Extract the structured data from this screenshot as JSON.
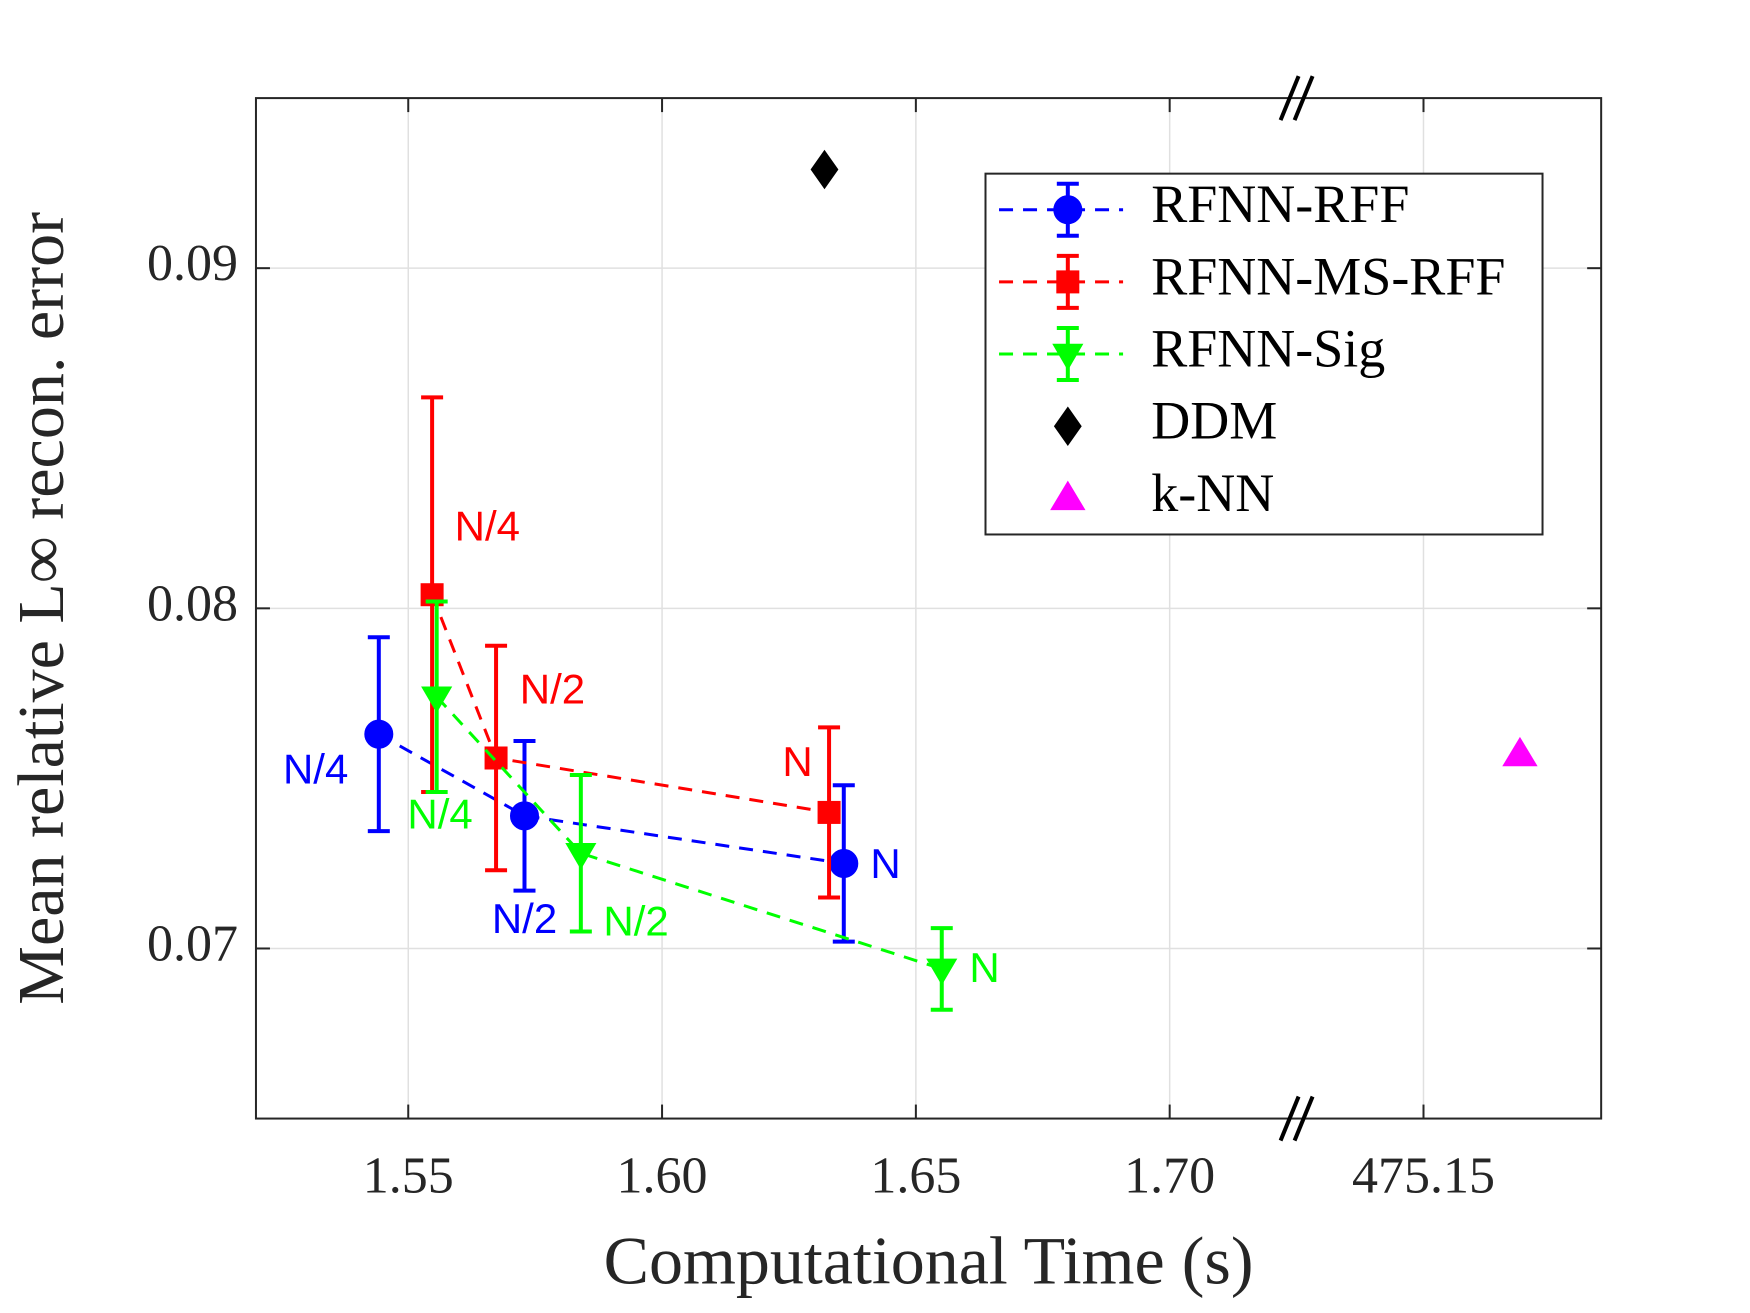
{
  "chart_data": {
    "type": "errorbar_scatter",
    "xlabel": "Computational Time (s)",
    "ylabel": "Mean relative L∞ recon. error",
    "xlim": [
      1.52,
      475.185
    ],
    "x_break": {
      "from": 1.725,
      "to": 475.125
    },
    "xticks": [
      {
        "value": 1.55,
        "label": "1.55"
      },
      {
        "value": 1.6,
        "label": "1.60"
      },
      {
        "value": 1.65,
        "label": "1.65"
      },
      {
        "value": 1.7,
        "label": "1.70"
      },
      475.15
    ],
    "ylim": [
      0.065,
      0.095
    ],
    "yticks": [
      0.07,
      0.08,
      0.09
    ],
    "grid": true,
    "legend": "upper right",
    "series": [
      {
        "name": "RFNN-RFF",
        "color": "#0000ff",
        "marker": "circle",
        "line": "dashed",
        "x": [
          1.5442,
          1.5729,
          1.6358
        ],
        "values": [
          0.0763,
          0.0739,
          0.0725
        ],
        "errors": [
          0.00285,
          0.0022,
          0.0023
        ],
        "point_labels": [
          "N/4",
          "N/2",
          "N"
        ]
      },
      {
        "name": "RFNN-MS-RFF",
        "color": "#ff0000",
        "marker": "square",
        "line": "dashed",
        "x": [
          1.5547,
          1.5673,
          1.6329
        ],
        "values": [
          0.0804,
          0.0756,
          0.074
        ],
        "errors": [
          0.0058,
          0.0033,
          0.0025
        ],
        "point_labels": [
          "N/4",
          "N/2",
          "N"
        ]
      },
      {
        "name": "RFNN-Sig",
        "color": "#00ff00",
        "marker": "triangle-down",
        "line": "dashed",
        "x": [
          1.5556,
          1.584,
          1.6551
        ],
        "values": [
          0.0774,
          0.0728,
          0.0694
        ],
        "errors": [
          0.0028,
          0.0023,
          0.0012
        ],
        "point_labels": [
          "N/4",
          "N/2",
          "N"
        ]
      },
      {
        "name": "DDM",
        "color": "#000000",
        "marker": "diamond",
        "x": [
          1.632
        ],
        "values": [
          0.0929
        ]
      },
      {
        "name": "k-NN",
        "color": "#ff00ff",
        "marker": "triangle-up",
        "x": [
          475.169
        ],
        "values": [
          0.0757
        ]
      }
    ]
  }
}
